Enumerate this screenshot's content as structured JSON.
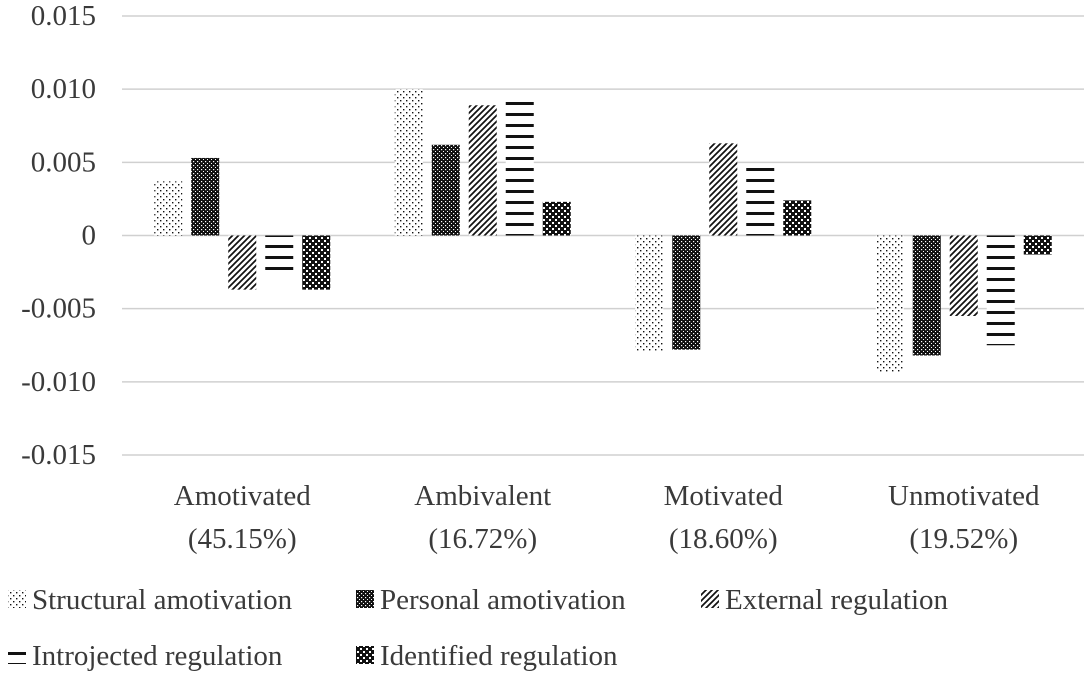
{
  "chart_data": {
    "type": "bar",
    "title": "",
    "xlabel": "",
    "ylabel": "",
    "ylim": [
      -0.015,
      0.015
    ],
    "yticks": [
      "0.015",
      "0.010",
      "0.005",
      "0",
      "-0.005",
      "-0.010",
      "-0.015"
    ],
    "ytick_values": [
      0.015,
      0.01,
      0.005,
      0,
      -0.005,
      -0.01,
      -0.015
    ],
    "grid": true,
    "legend_position": "bottom",
    "categories": [
      {
        "name": "Amotivated",
        "pct": "(45.15%)"
      },
      {
        "name": "Ambivalent",
        "pct": "(16.72%)"
      },
      {
        "name": "Motivated",
        "pct": "(18.60%)"
      },
      {
        "name": "Unmotivated",
        "pct": "(19.52%)"
      }
    ],
    "series": [
      {
        "name": "Structural amotivation",
        "pattern": "sparse-dots",
        "values": [
          0.0037,
          0.01,
          -0.0079,
          -0.0093
        ]
      },
      {
        "name": "Personal amotivation",
        "pattern": "dense-dots",
        "values": [
          0.0053,
          0.0062,
          -0.0078,
          -0.0082
        ]
      },
      {
        "name": "External regulation",
        "pattern": "diagonal",
        "values": [
          -0.0037,
          0.0089,
          0.0063,
          -0.0055
        ]
      },
      {
        "name": "Introjected regulation",
        "pattern": "horizontal",
        "values": [
          -0.0026,
          0.0094,
          0.0048,
          -0.0075
        ]
      },
      {
        "name": "Identified regulation",
        "pattern": "checker",
        "values": [
          -0.0037,
          0.0023,
          0.0024,
          -0.0013
        ]
      }
    ]
  }
}
